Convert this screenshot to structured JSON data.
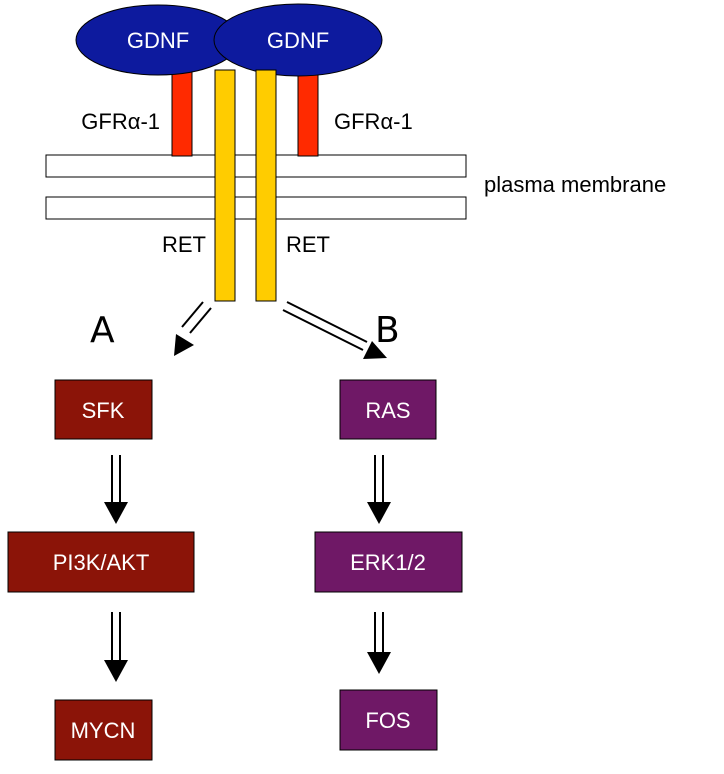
{
  "ligands": [
    {
      "label": "GDNF"
    },
    {
      "label": "GDNF"
    }
  ],
  "coreceptors": [
    {
      "label": "GFRα-1"
    },
    {
      "label": "GFRα-1"
    }
  ],
  "receptors": [
    {
      "label": "RET"
    },
    {
      "label": "RET"
    }
  ],
  "membrane": {
    "label": "plasma membrane"
  },
  "pathways": {
    "a": {
      "letter": "A",
      "nodes": [
        "SFK",
        "PI3K/AKT",
        "MYCN"
      ]
    },
    "b": {
      "letter": "B",
      "nodes": [
        "RAS",
        "ERK1/2",
        "FOS"
      ]
    }
  },
  "colors": {
    "ligand": "#0d1a9e",
    "coreceptor": "#ff2a00",
    "receptor": "#ffcc00",
    "pathway_a": "#8b1408",
    "pathway_b": "#6f1866"
  }
}
